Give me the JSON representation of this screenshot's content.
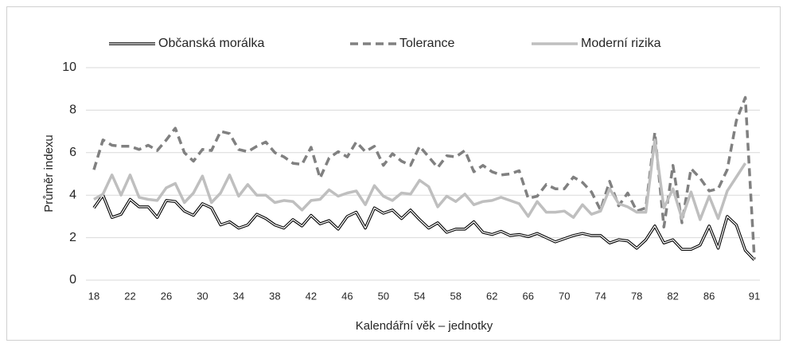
{
  "chart_data": {
    "type": "line",
    "xlabel": "Kalendářní věk – jednotky",
    "ylabel": "Průměr indexu",
    "categories": [
      18,
      null,
      null,
      null,
      22,
      null,
      null,
      null,
      26,
      null,
      null,
      null,
      30,
      null,
      null,
      null,
      34,
      null,
      null,
      null,
      38,
      null,
      null,
      null,
      42,
      null,
      null,
      null,
      46,
      null,
      null,
      null,
      50,
      null,
      null,
      null,
      54,
      null,
      null,
      null,
      58,
      null,
      null,
      null,
      62,
      null,
      null,
      null,
      66,
      null,
      null,
      null,
      70,
      null,
      null,
      null,
      74,
      null,
      null,
      null,
      78,
      null,
      null,
      null,
      82,
      null,
      null,
      null,
      86,
      null,
      null,
      null,
      null,
      91
    ],
    "ylim": [
      0,
      10
    ],
    "yticks": [
      0,
      2,
      4,
      6,
      8,
      10
    ],
    "grid": true,
    "legend": "top",
    "series": [
      {
        "name": "Občanská morálka",
        "color": "#000000",
        "style": "double",
        "values": [
          3.4,
          4.0,
          2.95,
          3.1,
          3.8,
          3.45,
          3.45,
          2.95,
          3.75,
          3.7,
          3.25,
          3.05,
          3.6,
          3.4,
          2.6,
          2.75,
          2.45,
          2.6,
          3.1,
          2.9,
          2.6,
          2.45,
          2.85,
          2.55,
          3.05,
          2.65,
          2.8,
          2.4,
          3.0,
          3.2,
          2.45,
          3.4,
          3.15,
          3.3,
          2.9,
          3.3,
          2.85,
          2.45,
          2.7,
          2.25,
          2.4,
          2.4,
          2.75,
          2.25,
          2.15,
          2.3,
          2.1,
          2.15,
          2.05,
          2.2,
          2.0,
          1.8,
          1.95,
          2.1,
          2.2,
          2.1,
          2.1,
          1.75,
          1.9,
          1.85,
          1.5,
          1.9,
          2.55,
          1.75,
          1.9,
          1.45,
          1.45,
          1.65,
          2.55,
          1.5,
          3.0,
          2.6,
          1.4,
          0.95
        ]
      },
      {
        "name": "Tolerance",
        "color": "#808080",
        "style": "dashed",
        "values": [
          5.2,
          6.6,
          6.35,
          6.3,
          6.3,
          6.15,
          6.35,
          6.1,
          6.6,
          7.15,
          6.0,
          5.6,
          6.15,
          6.1,
          7.0,
          6.9,
          6.15,
          6.05,
          6.3,
          6.5,
          6.0,
          5.8,
          5.5,
          5.45,
          6.25,
          4.8,
          5.75,
          6.05,
          5.8,
          6.5,
          6.05,
          6.3,
          5.4,
          5.95,
          5.6,
          5.4,
          6.3,
          5.8,
          5.3,
          5.85,
          5.8,
          6.1,
          5.1,
          5.4,
          5.1,
          4.95,
          5.0,
          5.15,
          3.85,
          3.95,
          4.5,
          4.3,
          4.3,
          4.85,
          4.6,
          4.15,
          3.3,
          4.65,
          3.5,
          4.1,
          3.25,
          3.4,
          6.95,
          2.5,
          5.4,
          2.7,
          5.25,
          4.8,
          4.2,
          4.3,
          5.2,
          7.5,
          8.6,
          1.0
        ]
      },
      {
        "name": "Moderní rizika",
        "color": "#bfbfbf",
        "style": "solid",
        "values": [
          3.8,
          4.05,
          4.95,
          4.0,
          4.95,
          3.9,
          3.8,
          3.75,
          4.35,
          4.55,
          3.65,
          4.1,
          4.9,
          3.65,
          4.1,
          4.95,
          3.95,
          4.5,
          4.0,
          4.0,
          3.65,
          3.75,
          3.7,
          3.3,
          3.75,
          3.8,
          4.25,
          3.95,
          4.1,
          4.2,
          3.55,
          4.45,
          3.95,
          3.75,
          4.1,
          4.05,
          4.7,
          4.4,
          3.45,
          3.95,
          3.7,
          4.05,
          3.55,
          3.7,
          3.75,
          3.9,
          3.75,
          3.6,
          3.0,
          3.7,
          3.2,
          3.2,
          3.25,
          2.95,
          3.55,
          3.1,
          3.25,
          4.3,
          3.6,
          3.45,
          3.2,
          3.2,
          6.6,
          3.4,
          4.3,
          2.9,
          4.15,
          2.85,
          3.95,
          2.9,
          4.2,
          4.85,
          5.5,
          null
        ]
      }
    ]
  }
}
